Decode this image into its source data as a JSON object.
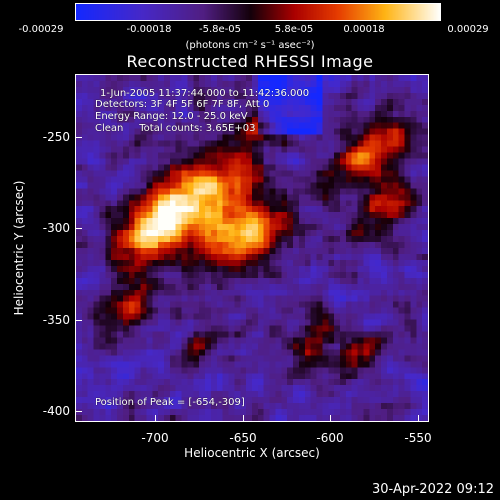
{
  "colorbar": {
    "ticks": [
      "-0.00029",
      "-0.00018",
      "-5.8e-05",
      "5.8e-05",
      "0.00018",
      "0.00029"
    ],
    "units_text": "(photons cm",
    "units_full": "(photons cm⁻² s⁻¹ asec⁻²)"
  },
  "title": "Reconstructed RHESSI Image",
  "info": {
    "time_range": "1-Jun-2005 11:37:44.000 to 11:42:36.000",
    "detectors": "Detectors: 3F 4F 5F 6F 7F 8F, Att 0",
    "energy": "Energy Range: 12.0 - 25.0 keV",
    "method": "Clean     Total counts: 3.65E+03",
    "peak": "Position of Peak = [-654,-309]"
  },
  "axes": {
    "xlabel": "Heliocentric X (arcsec)",
    "ylabel": "Heliocentric Y (arcsec)",
    "xticks": [
      "-700",
      "-650",
      "-600",
      "-550"
    ],
    "yticks": [
      "-250",
      "-300",
      "-350",
      "-400"
    ]
  },
  "timestamp": "30-Apr-2022 09:12"
}
